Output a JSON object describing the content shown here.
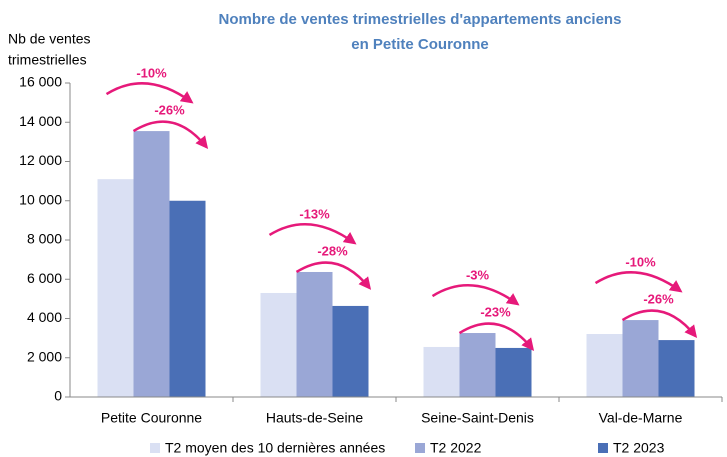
{
  "chart_data": {
    "type": "bar",
    "title": [
      "Nombre de ventes trimestrielles d'appartements anciens",
      "en Petite Couronne"
    ],
    "y_label": [
      "Nb de ventes",
      "trimestrielles"
    ],
    "categories": [
      "Petite Couronne",
      "Hauts-de-Seine",
      "Seine-Saint-Denis",
      "Val-de-Marne"
    ],
    "series": [
      {
        "name": "T2 moyen des 10 dernières années",
        "color": "#dae0f3",
        "values": [
          11100,
          5300,
          2550,
          3210
        ]
      },
      {
        "name": "T2 2022",
        "color": "#9aa7d6",
        "values": [
          13550,
          6370,
          3260,
          3920
        ]
      },
      {
        "name": "T2 2023",
        "color": "#4a6fb6",
        "values": [
          10000,
          4640,
          2500,
          2900
        ]
      }
    ],
    "annotations": [
      [
        "-10%",
        "-26%"
      ],
      [
        "-13%",
        "-28%"
      ],
      [
        "-3%",
        "-23%"
      ],
      [
        "-10%",
        "-26%"
      ]
    ],
    "annotation_color": "#e6197a",
    "ylim": [
      0,
      16000
    ],
    "yticks": [
      0,
      {
        "value": 2000,
        "label": "2 000"
      },
      {
        "value": 4000,
        "label": "4 000"
      },
      {
        "value": 6000,
        "label": "6 000"
      },
      {
        "value": 8000,
        "label": "8 000"
      },
      {
        "value": 10000,
        "label": "10 000"
      },
      {
        "value": 12000,
        "label": "12 000"
      },
      {
        "value": 14000,
        "label": "14 000"
      },
      {
        "value": 16000,
        "label": "16 000"
      }
    ],
    "grid": false
  }
}
